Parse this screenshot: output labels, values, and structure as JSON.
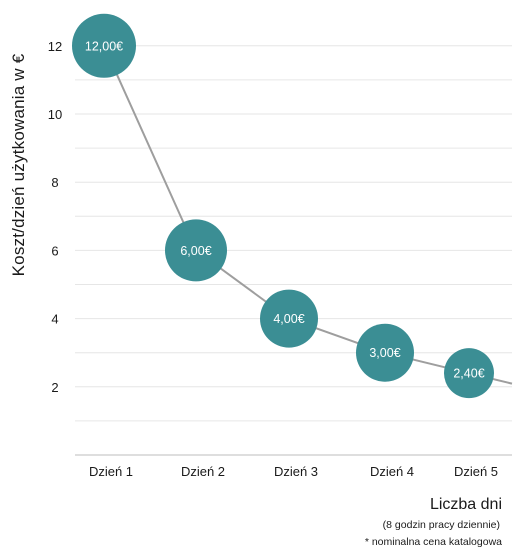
{
  "chart_data": {
    "type": "line",
    "categories": [
      "Dzień 1",
      "Dzień 2",
      "Dzień 3",
      "Dzień 4",
      "Dzień 5"
    ],
    "values": [
      12,
      6,
      4,
      3,
      2.4
    ],
    "data_labels": [
      "12,00€",
      "6,00€",
      "4,00€",
      "3,00€",
      "2,40€"
    ],
    "ylabel": "Koszt/dzień użytkowania w €",
    "xlabel": "Liczba dni",
    "notes": [
      "(8 godzin pracy dziennie)",
      "* nominalna cena katalogowa"
    ],
    "yticks": [
      "2",
      "4",
      "6",
      "8",
      "10",
      "12"
    ],
    "ylim": [
      0,
      12
    ],
    "grid": true,
    "colors": {
      "marker": "#3b8e94",
      "line": "#9e9e9e",
      "grid": "#e6e6e6",
      "label": "#ffffff"
    }
  }
}
